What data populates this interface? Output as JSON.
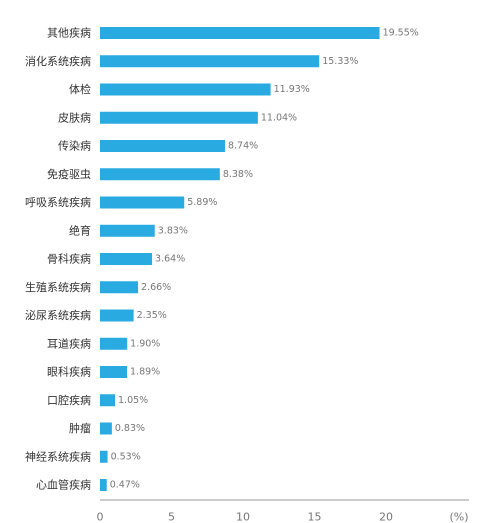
{
  "chart_data": {
    "type": "bar",
    "orientation": "horizontal",
    "categories": [
      "其他疾病",
      "消化系统疾病",
      "体检",
      "皮肤病",
      "传染病",
      "免疫驱虫",
      "呼吸系统疾病",
      "绝育",
      "骨科疾病",
      "生殖系统疾病",
      "泌尿系统疾病",
      "耳道疾病",
      "眼科疾病",
      "口腔疾病",
      "肿瘤",
      "神经系统疾病",
      "心血管疾病"
    ],
    "values": [
      19.55,
      15.33,
      11.93,
      11.04,
      8.74,
      8.38,
      5.89,
      3.83,
      3.64,
      2.66,
      2.35,
      1.9,
      1.89,
      1.05,
      0.83,
      0.53,
      0.47
    ],
    "value_labels": [
      "19.55%",
      "15.33%",
      "11.93%",
      "11.04%",
      "8.74%",
      "8.38%",
      "5.89%",
      "3.83%",
      "3.64%",
      "2.66%",
      "2.35%",
      "1.90%",
      "1.89%",
      "1.05%",
      "0.83%",
      "0.53%",
      "0.47%"
    ],
    "xticks": [
      0,
      5,
      10,
      15,
      20
    ],
    "xtick_labels": [
      "0",
      "5",
      "10",
      "15",
      "20"
    ],
    "xlim": [
      0,
      25
    ],
    "xunit": "(%)",
    "title": "",
    "xlabel": "",
    "ylabel": "",
    "grid": false,
    "legend": "none",
    "bar_color": "#29abe2",
    "axis_color": "#999999"
  }
}
